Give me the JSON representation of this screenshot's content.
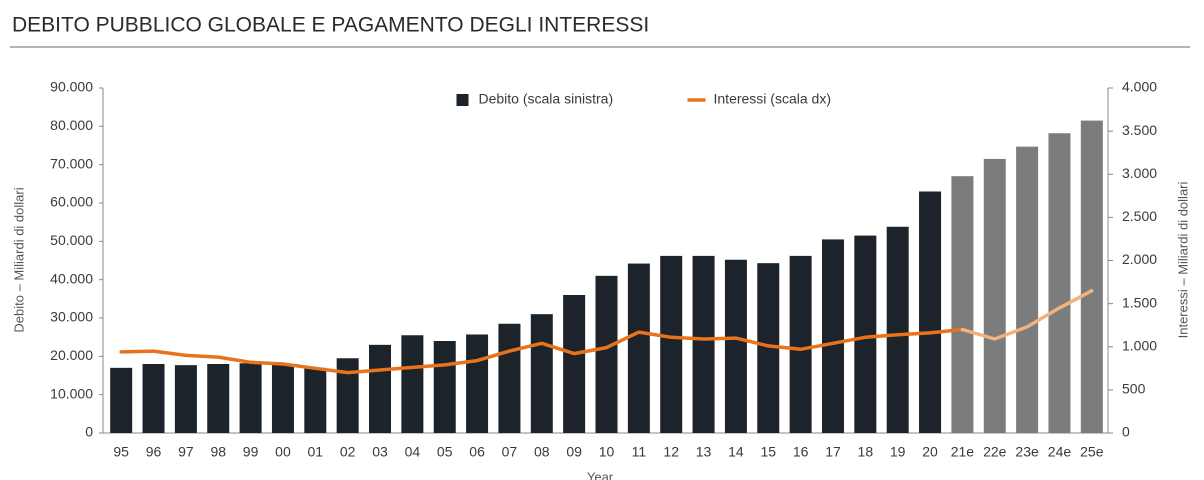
{
  "chart_data": {
    "type": "bar_line",
    "title": "DEBITO PUBBLICO GLOBALE E PAGAMENTO DEGLI INTERESSI",
    "x_label": "Year",
    "y_label": "Debito – Miliardi di dollari",
    "y2_label": "Interessi – Miliardi di dollari",
    "legend": "top-center",
    "grid": false,
    "categories": [
      "95",
      "96",
      "97",
      "98",
      "99",
      "00",
      "01",
      "02",
      "03",
      "04",
      "05",
      "06",
      "07",
      "08",
      "09",
      "10",
      "11",
      "12",
      "13",
      "14",
      "15",
      "16",
      "17",
      "18",
      "19",
      "20",
      "21e",
      "22e",
      "23e",
      "24e",
      "25e"
    ],
    "ylim": [
      0,
      90000
    ],
    "yticks": [
      0,
      {
        "value": 10000,
        "label": "10.000"
      },
      {
        "value": 20000,
        "label": "20.000"
      },
      {
        "value": 30000,
        "label": "30.000"
      },
      {
        "value": 40000,
        "label": "40.000"
      },
      {
        "value": 50000,
        "label": "50.000"
      },
      {
        "value": 60000,
        "label": "60.000"
      },
      {
        "value": 70000,
        "label": "70.000"
      },
      {
        "value": 80000,
        "label": "80.000"
      },
      {
        "value": 90000,
        "label": "90.000"
      }
    ],
    "y2lim": [
      0,
      4000
    ],
    "y2ticks": [
      0,
      500,
      {
        "value": 1000,
        "label": "1.000"
      },
      {
        "value": 1500,
        "label": "1.500"
      },
      {
        "value": 2000,
        "label": "2.000"
      },
      {
        "value": 2500,
        "label": "2.500"
      },
      {
        "value": 3000,
        "label": "3.000"
      },
      {
        "value": 3500,
        "label": "3.500"
      },
      {
        "value": 4000,
        "label": "4.000"
      }
    ],
    "series": [
      {
        "name": "Debito (scala sinistra)",
        "kind": "bar",
        "color": "#1c232a",
        "colors": [
          "#1c232a",
          "#1c232a",
          "#1c232a",
          "#1c232a",
          "#1c232a",
          "#1c232a",
          "#1c232a",
          "#1c232a",
          "#1c232a",
          "#1c232a",
          "#1c232a",
          "#1c232a",
          "#1c232a",
          "#1c232a",
          "#1c232a",
          "#1c232a",
          "#1c232a",
          "#1c232a",
          "#1c232a",
          "#1c232a",
          "#1c232a",
          "#1c232a",
          "#1c232a",
          "#1c232a",
          "#1c232a",
          "#1c232a",
          "#7b7c7e",
          "#7b7c7e",
          "#7b7c7e",
          "#7b7c7e",
          "#7b7c7e"
        ],
        "values": [
          17000,
          18000,
          17700,
          18000,
          18200,
          17800,
          17000,
          19500,
          23000,
          25500,
          24000,
          25700,
          28500,
          31000,
          36000,
          41000,
          44200,
          46200,
          46200,
          45200,
          44300,
          46200,
          50500,
          51500,
          53800,
          63000,
          67000,
          71500,
          74700,
          78200,
          81500
        ]
      },
      {
        "name": "Interessi (scala dx)",
        "kind": "line",
        "axis": "y2",
        "color": "#e8731a",
        "colors": [
          "#e8731a",
          "#e8731a",
          "#e8731a",
          "#e8731a",
          "#e8731a",
          "#e8731a",
          "#e8731a",
          "#e8731a",
          "#e8731a",
          "#e8731a",
          "#e8731a",
          "#e8731a",
          "#e8731a",
          "#e8731a",
          "#e8731a",
          "#e8731a",
          "#e8731a",
          "#e8731a",
          "#e8731a",
          "#e8731a",
          "#e8731a",
          "#e8731a",
          "#e8731a",
          "#e8731a",
          "#e8731a",
          "#e8731a",
          "#e8731a",
          "#f2b27c",
          "#f2b27c",
          "#f2b27c",
          "#f2b27c"
        ],
        "values": [
          940,
          950,
          900,
          880,
          820,
          800,
          750,
          700,
          730,
          760,
          790,
          840,
          950,
          1040,
          920,
          990,
          1170,
          1110,
          1090,
          1100,
          1010,
          970,
          1040,
          1110,
          1140,
          1160,
          1200,
          1090,
          1230,
          1450,
          1650
        ]
      }
    ]
  }
}
